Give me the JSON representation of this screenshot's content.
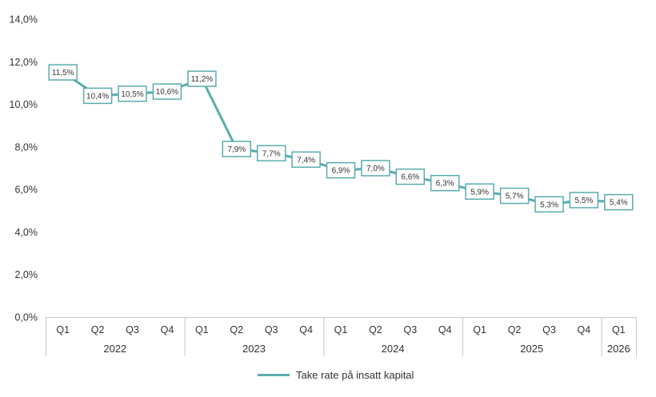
{
  "chart_data": {
    "type": "line",
    "categories": [
      "Q1",
      "Q2",
      "Q3",
      "Q4",
      "Q1",
      "Q2",
      "Q3",
      "Q4",
      "Q1",
      "Q2",
      "Q3",
      "Q4",
      "Q1",
      "Q2",
      "Q3",
      "Q4",
      "Q1"
    ],
    "groups": [
      {
        "label": "2022",
        "count": 4
      },
      {
        "label": "2023",
        "count": 4
      },
      {
        "label": "2024",
        "count": 4
      },
      {
        "label": "2025",
        "count": 4
      },
      {
        "label": "2026",
        "count": 1
      }
    ],
    "series": [
      {
        "name": "Take rate på insatt kapital",
        "values": [
          11.5,
          10.4,
          10.5,
          10.6,
          11.2,
          7.9,
          7.7,
          7.4,
          6.9,
          7.0,
          6.6,
          6.3,
          5.9,
          5.7,
          5.3,
          5.5,
          5.4
        ],
        "labels": [
          "11,5%",
          "10,4%",
          "10,5%",
          "10,6%",
          "11,2%",
          "7,9%",
          "7,7%",
          "7,4%",
          "6,9%",
          "7,0%",
          "6,6%",
          "6,3%",
          "5,9%",
          "5,7%",
          "5,3%",
          "5,5%",
          "5,4%"
        ],
        "color": "#5aabad"
      }
    ],
    "y_ticks": [
      "0,0%",
      "2,0%",
      "4,0%",
      "6,0%",
      "8,0%",
      "10,0%",
      "12,0%",
      "14,0%"
    ],
    "ylim": [
      0,
      14
    ],
    "grid": false,
    "legend_position": "bottom"
  }
}
